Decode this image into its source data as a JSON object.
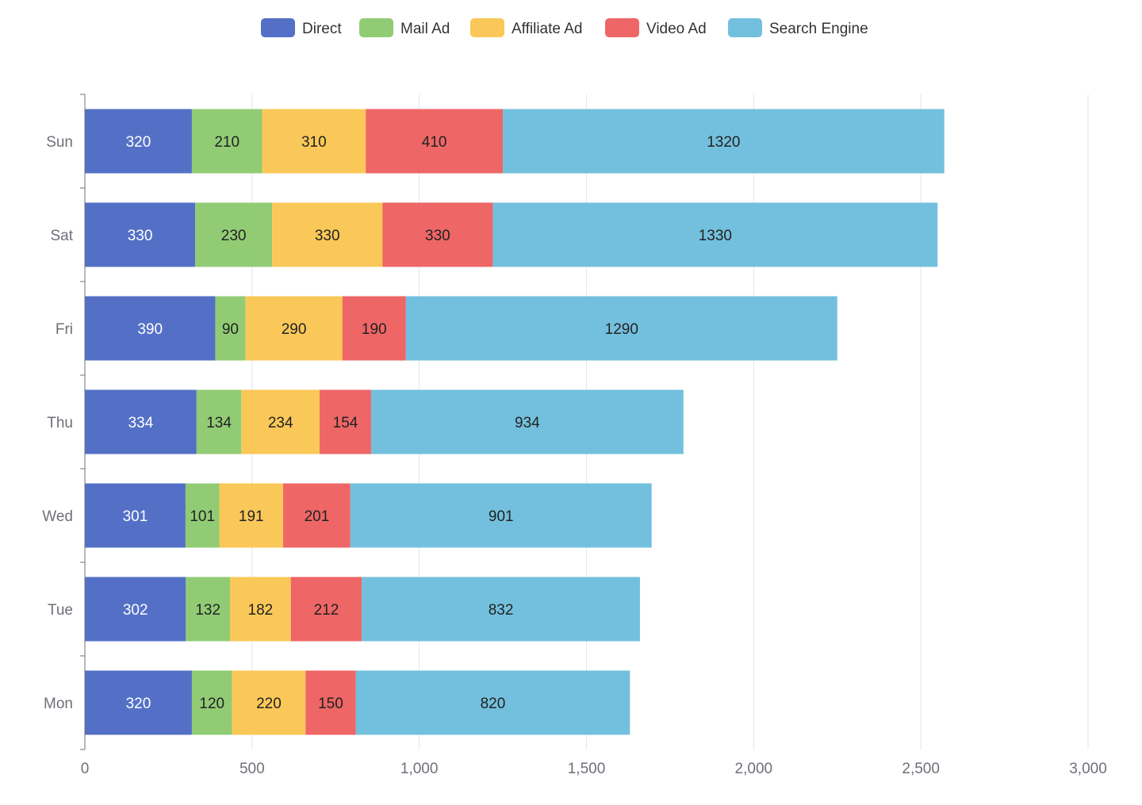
{
  "chart_data": {
    "type": "bar",
    "orientation": "horizontal",
    "stacked": true,
    "categories": [
      "Mon",
      "Tue",
      "Wed",
      "Thu",
      "Fri",
      "Sat",
      "Sun"
    ],
    "series": [
      {
        "name": "Direct",
        "color": "#5470c6",
        "values": [
          320,
          302,
          301,
          334,
          390,
          330,
          320
        ]
      },
      {
        "name": "Mail Ad",
        "color": "#91cc75",
        "values": [
          120,
          132,
          101,
          134,
          90,
          230,
          210
        ]
      },
      {
        "name": "Affiliate Ad",
        "color": "#fac858",
        "values": [
          220,
          182,
          191,
          234,
          290,
          330,
          310
        ]
      },
      {
        "name": "Video Ad",
        "color": "#ee6666",
        "values": [
          150,
          212,
          201,
          154,
          190,
          330,
          410
        ]
      },
      {
        "name": "Search Engine",
        "color": "#73c0de",
        "values": [
          820,
          832,
          901,
          934,
          1290,
          1330,
          1320
        ]
      }
    ],
    "xlim": [
      0,
      3000
    ],
    "xticks": [
      "0",
      "500",
      "1,000",
      "1,500",
      "2,000",
      "2,500",
      "3,000"
    ],
    "xtick_values": [
      0,
      500,
      1000,
      1500,
      2000,
      2500,
      3000
    ],
    "grid": "vertical",
    "legend": "top-center",
    "data_labels": true
  }
}
